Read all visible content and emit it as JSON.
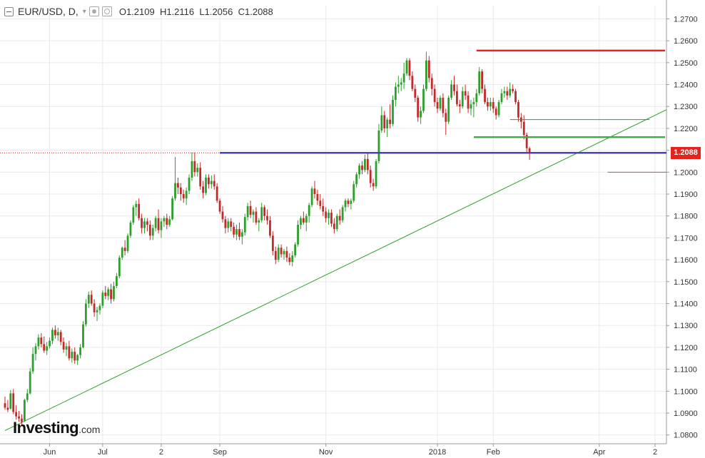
{
  "header": {
    "symbol": "EUR/USD, D,",
    "open_label": "O",
    "open": "1.2109",
    "high_label": "H",
    "high": "1.2116",
    "low_label": "L",
    "low": "1.2056",
    "close_label": "C",
    "close": "1.2088"
  },
  "logo": {
    "name": "Investing",
    "suffix": ".com"
  },
  "last_price_tag": "1.2088",
  "colors": {
    "up": "#2ba02b",
    "down": "#c62828",
    "trend_line": "#2ba02b",
    "resistance": "#e4221e",
    "support_green": "#3cb043",
    "support_blue": "#4a3fc0",
    "marker_purple": "#9c4fa0",
    "last_price_bg": "#e4221e"
  },
  "chart_data": {
    "type": "candlestick",
    "title": "EUR/USD, D",
    "ylim": [
      1.076,
      1.276
    ],
    "y_ticks": [
      "1.0800",
      "1.0900",
      "1.1000",
      "1.1100",
      "1.1200",
      "1.1300",
      "1.1400",
      "1.1500",
      "1.1600",
      "1.1700",
      "1.1800",
      "1.1900",
      "1.2000",
      "1.2100",
      "1.2200",
      "1.2300",
      "1.2400",
      "1.2500",
      "1.2600",
      "1.2700"
    ],
    "x_ticks": [
      "Jun",
      "Jul",
      "2",
      "Sep",
      "Nov",
      "2018",
      "Feb",
      "Apr",
      "2"
    ],
    "x_tick_index": [
      16,
      35,
      56,
      77,
      115,
      155,
      175,
      213,
      233
    ],
    "grid": true,
    "last_close": 1.2088,
    "ohlc": [
      [
        1.0945,
        1.0975,
        1.0915,
        1.0925
      ],
      [
        1.0925,
        1.096,
        1.0905,
        1.0915
      ],
      [
        1.092,
        1.1005,
        1.0915,
        1.099
      ],
      [
        1.099,
        1.101,
        1.0895,
        1.0905
      ],
      [
        1.0905,
        1.0935,
        1.087,
        1.0885
      ],
      [
        1.0885,
        1.091,
        1.086,
        1.0875
      ],
      [
        1.0875,
        1.0895,
        1.0845,
        1.086
      ],
      [
        1.0865,
        1.0965,
        1.086,
        1.096
      ],
      [
        1.096,
        1.101,
        1.095,
        1.099
      ],
      [
        1.099,
        1.1105,
        1.0985,
        1.109
      ],
      [
        1.109,
        1.12,
        1.108,
        1.117
      ],
      [
        1.117,
        1.122,
        1.114,
        1.1205
      ],
      [
        1.1205,
        1.126,
        1.119,
        1.1245
      ],
      [
        1.1245,
        1.1265,
        1.12,
        1.1215
      ],
      [
        1.1215,
        1.125,
        1.1175,
        1.1185
      ],
      [
        1.1185,
        1.1225,
        1.1165,
        1.1205
      ],
      [
        1.1205,
        1.1245,
        1.1195,
        1.123
      ],
      [
        1.123,
        1.129,
        1.1215,
        1.128
      ],
      [
        1.128,
        1.13,
        1.124,
        1.1255
      ],
      [
        1.1255,
        1.129,
        1.123,
        1.127
      ],
      [
        1.127,
        1.128,
        1.121,
        1.1225
      ],
      [
        1.1225,
        1.1245,
        1.1175,
        1.119
      ],
      [
        1.119,
        1.122,
        1.116,
        1.1205
      ],
      [
        1.1205,
        1.123,
        1.114,
        1.115
      ],
      [
        1.115,
        1.1195,
        1.113,
        1.118
      ],
      [
        1.118,
        1.12,
        1.1125,
        1.114
      ],
      [
        1.114,
        1.117,
        1.112,
        1.1165
      ],
      [
        1.1165,
        1.1215,
        1.115,
        1.12
      ],
      [
        1.12,
        1.132,
        1.1195,
        1.1305
      ],
      [
        1.1305,
        1.142,
        1.1295,
        1.14
      ],
      [
        1.14,
        1.1455,
        1.138,
        1.144
      ],
      [
        1.144,
        1.146,
        1.139,
        1.14
      ],
      [
        1.14,
        1.142,
        1.134,
        1.136
      ],
      [
        1.136,
        1.1385,
        1.132,
        1.137
      ],
      [
        1.137,
        1.14,
        1.135,
        1.139
      ],
      [
        1.139,
        1.146,
        1.138,
        1.145
      ],
      [
        1.145,
        1.148,
        1.142,
        1.1435
      ],
      [
        1.1435,
        1.1475,
        1.1415,
        1.1465
      ],
      [
        1.1465,
        1.149,
        1.14,
        1.142
      ],
      [
        1.142,
        1.15,
        1.141,
        1.148
      ],
      [
        1.148,
        1.154,
        1.147,
        1.1525
      ],
      [
        1.1525,
        1.162,
        1.1515,
        1.161
      ],
      [
        1.161,
        1.166,
        1.16,
        1.1655
      ],
      [
        1.1655,
        1.169,
        1.162,
        1.164
      ],
      [
        1.164,
        1.172,
        1.163,
        1.171
      ],
      [
        1.171,
        1.178,
        1.17,
        1.177
      ],
      [
        1.177,
        1.185,
        1.176,
        1.184
      ],
      [
        1.184,
        1.187,
        1.18,
        1.1855
      ],
      [
        1.1855,
        1.188,
        1.178,
        1.179
      ],
      [
        1.179,
        1.181,
        1.172,
        1.1745
      ],
      [
        1.1745,
        1.179,
        1.172,
        1.1775
      ],
      [
        1.1775,
        1.179,
        1.173,
        1.176
      ],
      [
        1.176,
        1.178,
        1.169,
        1.171
      ],
      [
        1.171,
        1.176,
        1.169,
        1.1745
      ],
      [
        1.1745,
        1.18,
        1.173,
        1.179
      ],
      [
        1.179,
        1.183,
        1.172,
        1.1735
      ],
      [
        1.1735,
        1.179,
        1.17,
        1.1775
      ],
      [
        1.1775,
        1.18,
        1.175,
        1.179
      ],
      [
        1.179,
        1.181,
        1.174,
        1.176
      ],
      [
        1.176,
        1.18,
        1.175,
        1.1785
      ],
      [
        1.1785,
        1.189,
        1.178,
        1.188
      ],
      [
        1.188,
        1.207,
        1.187,
        1.195
      ],
      [
        1.195,
        1.1975,
        1.19,
        1.193
      ],
      [
        1.193,
        1.195,
        1.187,
        1.19
      ],
      [
        1.19,
        1.192,
        1.186,
        1.188
      ],
      [
        1.188,
        1.193,
        1.185,
        1.1915
      ],
      [
        1.1915,
        1.199,
        1.19,
        1.1975
      ],
      [
        1.1975,
        1.209,
        1.196,
        1.205
      ],
      [
        1.205,
        1.209,
        1.198,
        1.2
      ],
      [
        1.2,
        1.204,
        1.198,
        1.202
      ],
      [
        1.202,
        1.2045,
        1.192,
        1.1935
      ],
      [
        1.1935,
        1.196,
        1.188,
        1.1905
      ],
      [
        1.1905,
        1.199,
        1.1895,
        1.1975
      ],
      [
        1.1975,
        1.199,
        1.1925,
        1.1945
      ],
      [
        1.1945,
        1.1985,
        1.1925,
        1.196
      ],
      [
        1.196,
        1.199,
        1.192,
        1.1935
      ],
      [
        1.1935,
        1.195,
        1.186,
        1.187
      ],
      [
        1.187,
        1.188,
        1.181,
        1.182
      ],
      [
        1.182,
        1.1845,
        1.177,
        1.1785
      ],
      [
        1.1785,
        1.18,
        1.172,
        1.1745
      ],
      [
        1.1745,
        1.179,
        1.1725,
        1.1775
      ],
      [
        1.1775,
        1.179,
        1.173,
        1.175
      ],
      [
        1.175,
        1.177,
        1.17,
        1.1715
      ],
      [
        1.1715,
        1.176,
        1.169,
        1.174
      ],
      [
        1.174,
        1.177,
        1.169,
        1.1705
      ],
      [
        1.1705,
        1.174,
        1.167,
        1.1725
      ],
      [
        1.1725,
        1.181,
        1.171,
        1.1795
      ],
      [
        1.1795,
        1.186,
        1.178,
        1.1845
      ],
      [
        1.1845,
        1.187,
        1.179,
        1.1805
      ],
      [
        1.1805,
        1.183,
        1.177,
        1.182
      ],
      [
        1.182,
        1.184,
        1.176,
        1.177
      ],
      [
        1.177,
        1.179,
        1.173,
        1.178
      ],
      [
        1.178,
        1.186,
        1.177,
        1.184
      ],
      [
        1.184,
        1.185,
        1.178,
        1.18
      ],
      [
        1.18,
        1.183,
        1.176,
        1.178
      ],
      [
        1.178,
        1.18,
        1.17,
        1.171
      ],
      [
        1.171,
        1.173,
        1.162,
        1.164
      ],
      [
        1.164,
        1.166,
        1.158,
        1.16
      ],
      [
        1.16,
        1.167,
        1.159,
        1.1655
      ],
      [
        1.1655,
        1.167,
        1.161,
        1.1625
      ],
      [
        1.1625,
        1.165,
        1.16,
        1.164
      ],
      [
        1.164,
        1.166,
        1.159,
        1.161
      ],
      [
        1.161,
        1.163,
        1.1575,
        1.159
      ],
      [
        1.159,
        1.164,
        1.157,
        1.162
      ],
      [
        1.162,
        1.168,
        1.161,
        1.167
      ],
      [
        1.167,
        1.178,
        1.166,
        1.176
      ],
      [
        1.176,
        1.18,
        1.174,
        1.179
      ],
      [
        1.179,
        1.182,
        1.176,
        1.177
      ],
      [
        1.177,
        1.181,
        1.173,
        1.18
      ],
      [
        1.18,
        1.186,
        1.177,
        1.185
      ],
      [
        1.185,
        1.1935,
        1.184,
        1.1925
      ],
      [
        1.1925,
        1.196,
        1.188,
        1.19
      ],
      [
        1.19,
        1.192,
        1.185,
        1.187
      ],
      [
        1.187,
        1.19,
        1.183,
        1.1845
      ],
      [
        1.1845,
        1.188,
        1.18,
        1.182
      ],
      [
        1.182,
        1.184,
        1.177,
        1.179
      ],
      [
        1.179,
        1.183,
        1.176,
        1.1815
      ],
      [
        1.1815,
        1.183,
        1.175,
        1.1765
      ],
      [
        1.1765,
        1.179,
        1.172,
        1.174
      ],
      [
        1.174,
        1.181,
        1.173,
        1.18
      ],
      [
        1.18,
        1.183,
        1.176,
        1.178
      ],
      [
        1.178,
        1.185,
        1.177,
        1.184
      ],
      [
        1.184,
        1.188,
        1.182,
        1.187
      ],
      [
        1.187,
        1.188,
        1.184,
        1.1855
      ],
      [
        1.1855,
        1.188,
        1.183,
        1.187
      ],
      [
        1.187,
        1.196,
        1.186,
        1.1945
      ],
      [
        1.1945,
        1.2,
        1.193,
        1.199
      ],
      [
        1.199,
        1.204,
        1.197,
        1.203
      ],
      [
        1.203,
        1.205,
        1.199,
        1.201
      ],
      [
        1.201,
        1.208,
        1.2,
        1.206
      ],
      [
        1.206,
        1.209,
        1.199,
        1.201
      ],
      [
        1.201,
        1.203,
        1.193,
        1.195
      ],
      [
        1.195,
        1.197,
        1.1915,
        1.1935
      ],
      [
        1.1935,
        1.206,
        1.1925,
        1.205
      ],
      [
        1.205,
        1.222,
        1.204,
        1.219
      ],
      [
        1.219,
        1.23,
        1.218,
        1.226
      ],
      [
        1.226,
        1.228,
        1.218,
        1.22
      ],
      [
        1.22,
        1.225,
        1.216,
        1.224
      ],
      [
        1.224,
        1.231,
        1.22,
        1.222
      ],
      [
        1.222,
        1.235,
        1.221,
        1.233
      ],
      [
        1.233,
        1.241,
        1.23,
        1.239
      ],
      [
        1.239,
        1.244,
        1.236,
        1.24
      ],
      [
        1.24,
        1.243,
        1.237,
        1.241
      ],
      [
        1.241,
        1.25,
        1.238,
        1.245
      ],
      [
        1.245,
        1.252,
        1.244,
        1.251
      ],
      [
        1.251,
        1.252,
        1.242,
        1.244
      ],
      [
        1.244,
        1.246,
        1.237,
        1.238
      ],
      [
        1.238,
        1.24,
        1.232,
        1.234
      ],
      [
        1.234,
        1.235,
        1.223,
        1.225
      ],
      [
        1.225,
        1.23,
        1.222,
        1.228
      ],
      [
        1.228,
        1.24,
        1.227,
        1.238
      ],
      [
        1.238,
        1.255,
        1.237,
        1.251
      ],
      [
        1.251,
        1.253,
        1.241,
        1.243
      ],
      [
        1.243,
        1.245,
        1.235,
        1.238
      ],
      [
        1.238,
        1.24,
        1.23,
        1.232
      ],
      [
        1.232,
        1.234,
        1.227,
        1.229
      ],
      [
        1.229,
        1.235,
        1.228,
        1.234
      ],
      [
        1.234,
        1.236,
        1.225,
        1.227
      ],
      [
        1.227,
        1.229,
        1.217,
        1.223
      ],
      [
        1.223,
        1.235,
        1.222,
        1.234
      ],
      [
        1.234,
        1.242,
        1.233,
        1.24
      ],
      [
        1.24,
        1.244,
        1.235,
        1.237
      ],
      [
        1.237,
        1.24,
        1.23,
        1.231
      ],
      [
        1.231,
        1.233,
        1.227,
        1.23
      ],
      [
        1.23,
        1.239,
        1.229,
        1.237
      ],
      [
        1.237,
        1.24,
        1.233,
        1.235
      ],
      [
        1.235,
        1.237,
        1.227,
        1.229
      ],
      [
        1.229,
        1.233,
        1.226,
        1.231
      ],
      [
        1.231,
        1.234,
        1.225,
        1.232
      ],
      [
        1.232,
        1.238,
        1.23,
        1.236
      ],
      [
        1.236,
        1.248,
        1.235,
        1.246
      ],
      [
        1.246,
        1.247,
        1.236,
        1.238
      ],
      [
        1.238,
        1.24,
        1.231,
        1.232
      ],
      [
        1.232,
        1.234,
        1.228,
        1.23
      ],
      [
        1.23,
        1.234,
        1.228,
        1.232
      ],
      [
        1.232,
        1.234,
        1.227,
        1.229
      ],
      [
        1.229,
        1.23,
        1.224,
        1.226
      ],
      [
        1.226,
        1.233,
        1.225,
        1.232
      ],
      [
        1.232,
        1.238,
        1.231,
        1.236
      ],
      [
        1.236,
        1.239,
        1.234,
        1.237
      ],
      [
        1.237,
        1.239,
        1.233,
        1.235
      ],
      [
        1.235,
        1.241,
        1.234,
        1.238
      ],
      [
        1.238,
        1.24,
        1.236,
        1.237
      ],
      [
        1.237,
        1.238,
        1.231,
        1.232
      ],
      [
        1.232,
        1.233,
        1.223,
        1.225
      ],
      [
        1.225,
        1.227,
        1.22,
        1.223
      ],
      [
        1.223,
        1.226,
        1.215,
        1.217
      ],
      [
        1.217,
        1.218,
        1.209,
        1.2109
      ],
      [
        1.2109,
        1.2116,
        1.2056,
        1.2088
      ]
    ]
  },
  "annotations": {
    "resistance_level": 1.2555,
    "support_level_1": 1.216,
    "support_level_2": 1.2088,
    "mid_level": 1.224,
    "marker_level": 1.2,
    "trend_start": {
      "index": 0,
      "price": 1.082
    },
    "trend_end": {
      "index": 233,
      "price": 1.2285
    }
  }
}
